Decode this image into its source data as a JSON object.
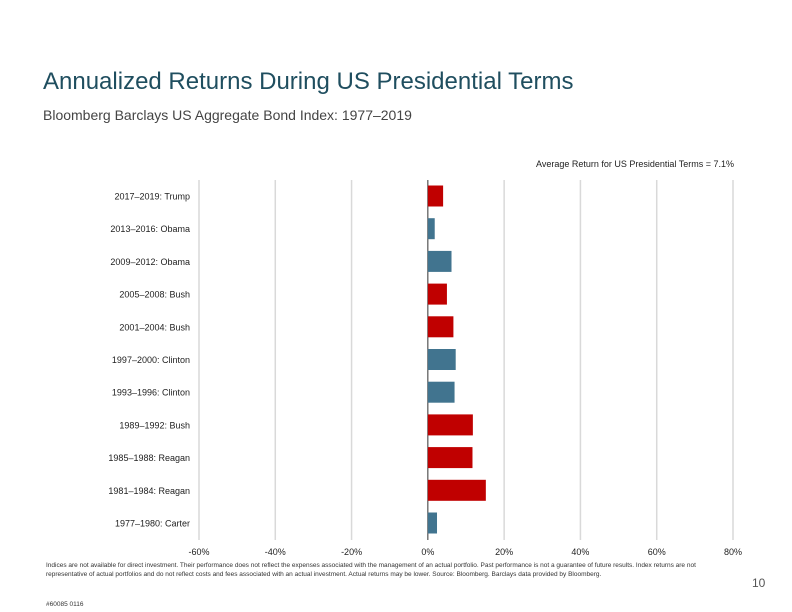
{
  "header": {
    "title": "Annualized Returns During US Presidential Terms",
    "subtitle": "Bloomberg Barclays US Aggregate Bond Index: 1977–2019"
  },
  "avg_note": "Average Return for US Presidential Terms = 7.1%",
  "colors": {
    "republican": "#c00000",
    "democrat": "#41748f",
    "grid": "#d9d9d9",
    "axis": "#333333"
  },
  "chart_data": {
    "type": "bar",
    "orientation": "horizontal",
    "title": "Annualized Returns During US Presidential Terms",
    "subtitle": "Bloomberg Barclays US Aggregate Bond Index: 1977–2019",
    "categories": [
      "2017–2019: Trump",
      "2013–2016: Obama",
      "2009–2012: Obama",
      "2005–2008: Bush",
      "2001–2004: Bush",
      "1997–2000: Clinton",
      "1993–1996: Clinton",
      "1989–1992: Bush",
      "1985–1988: Reagan",
      "1981–1984: Reagan",
      "1977–1980: Carter"
    ],
    "values": [
      4.0,
      1.8,
      6.2,
      5.0,
      6.7,
      7.3,
      7.0,
      11.8,
      11.7,
      15.2,
      2.4
    ],
    "party": [
      "R",
      "D",
      "D",
      "R",
      "R",
      "D",
      "D",
      "R",
      "R",
      "R",
      "D"
    ],
    "xlim": [
      -60,
      80
    ],
    "xticks": [
      -60,
      -40,
      -20,
      0,
      20,
      40,
      60,
      80
    ],
    "xtick_labels": [
      "-60%",
      "-40%",
      "-20%",
      "0%",
      "20%",
      "40%",
      "60%",
      "80%"
    ],
    "grid": true
  },
  "footnote": "Indices are not available for direct investment. Their performance does not reflect the expenses associated with the management of an actual portfolio. Past performance is not a guarantee of future results. Index returns are not representative of actual portfolios and do not reflect costs and fees associated with an actual investment. Actual returns may be lower. Source: Bloomberg. Barclays data provided by Bloomberg.",
  "page_number": "10",
  "code": "#60085 0116"
}
